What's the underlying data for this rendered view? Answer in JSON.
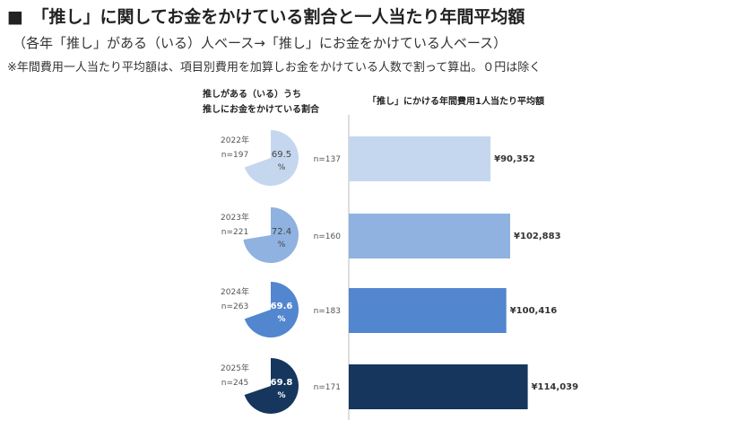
{
  "title": "■　「推し」に関してお金をかけている割合と一人当たり年間平均額",
  "subtitle": "（各年「推し」がある（いる）人ベース→「推し」にお金をかけている人ベース）",
  "note": "※年間費用一人当たり平均額は、項目別費用を加算しお金をかけている人数で割って算出。０円は除く",
  "pie_header_line1": "推しがある（いる）うち",
  "pie_header_line2": "推しにお金をかけている割合",
  "bar_header": "「推し」にかける年間費用1人当たり平均額",
  "chart_data": [
    {
      "type": "pie",
      "title": "推しがある（いる）うち 推しにお金をかけている割合",
      "unit": "%",
      "items": [
        {
          "year": "2022年",
          "n": "n=197",
          "value": 69.5,
          "label": "69.5",
          "unit": "%",
          "color": "#c5d7ef"
        },
        {
          "year": "2023年",
          "n": "n=221",
          "value": 72.4,
          "label": "72.4",
          "unit": "%",
          "color": "#8fb2e0"
        },
        {
          "year": "2024年",
          "n": "n=263",
          "value": 69.6,
          "label": "69.6",
          "unit": "%",
          "color": "#5286cf"
        },
        {
          "year": "2025年",
          "n": "n=245",
          "value": 69.8,
          "label": "69.8",
          "unit": "%",
          "color": "#16365e"
        }
      ]
    },
    {
      "type": "bar",
      "title": "「推し」にかける年間費用1人当たり平均額",
      "categories": [
        "2022年",
        "2023年",
        "2024年",
        "2025年"
      ],
      "n_labels": [
        "n=137",
        "n=160",
        "n=183",
        "n=171"
      ],
      "values": [
        90352,
        102883,
        100416,
        114039
      ],
      "value_labels": [
        "¥90,352",
        "¥102,883",
        "¥100,416",
        "¥114,039"
      ],
      "colors": [
        "#c5d7ef",
        "#8fb2e0",
        "#5286cf",
        "#16365e"
      ],
      "xlim": [
        0,
        140000
      ]
    }
  ]
}
